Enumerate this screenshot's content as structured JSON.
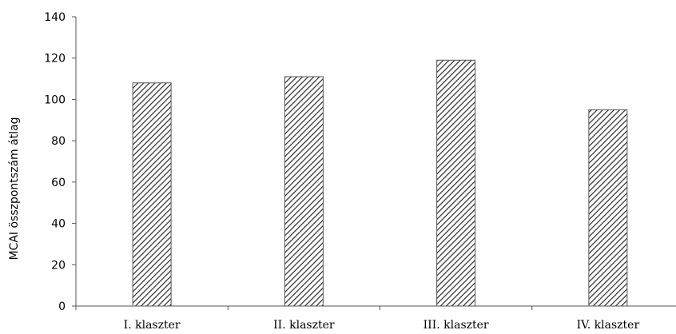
{
  "chart_data": {
    "type": "bar",
    "categories": [
      "I. klaszter",
      "II. klaszter",
      "III. klaszter",
      "IV. klaszter"
    ],
    "values": [
      108,
      111,
      119,
      95
    ],
    "ylabel": "MCAI összpontszám átlag",
    "xlabel": "",
    "ylim": [
      0,
      140
    ],
    "yticks": [
      0,
      20,
      40,
      60,
      80,
      100,
      120,
      140
    ],
    "grid": false,
    "bar_fill": "hatched",
    "colors": {
      "bar_hatch": "#3a3a3a",
      "bar_edge": "#555555",
      "axis": "#555555"
    }
  }
}
